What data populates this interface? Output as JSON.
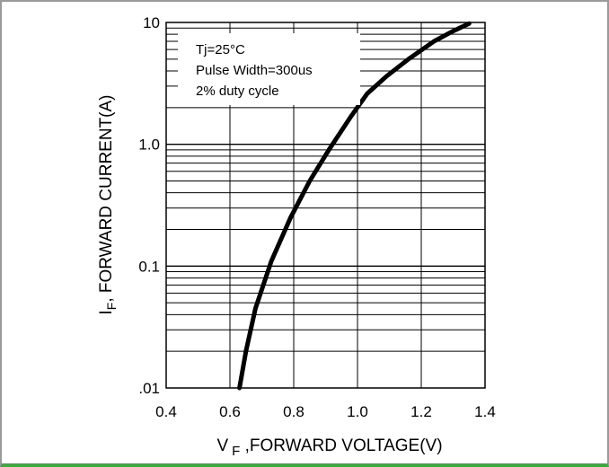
{
  "chart_data": {
    "type": "line",
    "ylabel": "I F, FORWARD CURRENT(A)",
    "ylabel_main": "I",
    "ylabel_sub": "F",
    "ylabel_rest": ", FORWARD CURRENT(A)",
    "xlabel": "V F ,FORWARD VOLTAGE(V)",
    "xlabel_main": "V",
    "xlabel_sub": "F",
    "xlabel_rest": " ,FORWARD VOLTAGE(V)",
    "xlim": [
      0.4,
      1.4
    ],
    "ylim": [
      0.01,
      10
    ],
    "y_scale": "log",
    "x_ticks": [
      "0.4",
      "0.6",
      "0.8",
      "1.0",
      "1.2",
      "1.4"
    ],
    "x_tick_values": [
      0.4,
      0.6,
      0.8,
      1.0,
      1.2,
      1.4
    ],
    "y_ticks": [
      ".01",
      "0.1",
      "1.0",
      "10"
    ],
    "y_tick_values": [
      0.01,
      0.1,
      1,
      10
    ],
    "grid": true,
    "annotations": [
      "Tj=25°C",
      "Pulse Width=300us",
      "2% duty cycle"
    ],
    "series": [
      {
        "x": [
          0.63,
          0.65,
          0.68,
          0.73,
          0.79,
          0.85,
          0.91,
          0.98,
          1.03,
          1.09,
          1.16,
          1.24,
          1.3,
          1.35
        ],
        "y": [
          0.01,
          0.02,
          0.045,
          0.11,
          0.25,
          0.5,
          0.9,
          1.7,
          2.6,
          3.6,
          5.0,
          7.0,
          8.5,
          9.8
        ]
      }
    ]
  }
}
